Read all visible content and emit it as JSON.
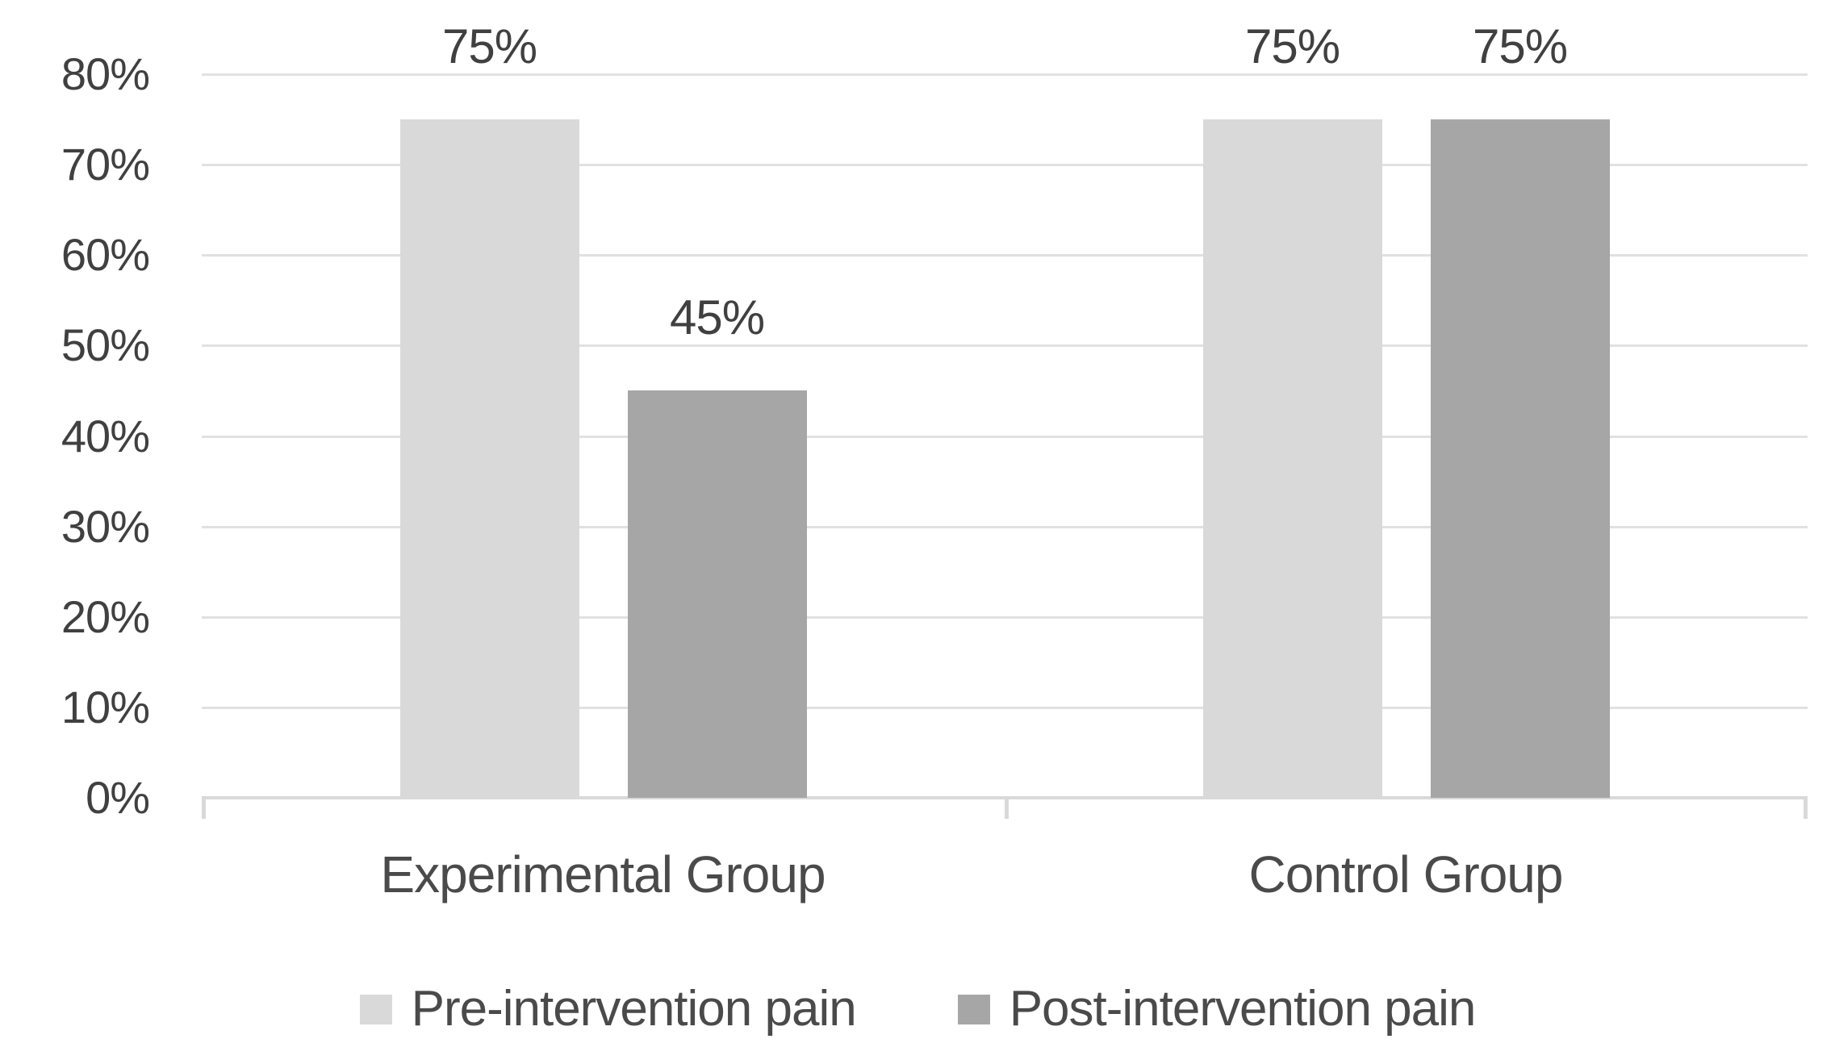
{
  "chart_data": {
    "type": "bar",
    "categories": [
      "Experimental Group",
      "Control Group"
    ],
    "series": [
      {
        "name": "Pre-intervention pain",
        "color": "#d9d9d9",
        "values": [
          75,
          75
        ],
        "labels": [
          "75%",
          "75%"
        ]
      },
      {
        "name": "Post-intervention pain",
        "color": "#a6a6a6",
        "values": [
          45,
          75
        ],
        "labels": [
          "45%",
          "75%"
        ]
      }
    ],
    "title": "",
    "xlabel": "",
    "ylabel": "",
    "ylim": [
      0,
      80
    ],
    "ytick_step": 10,
    "ytick_labels": [
      "0%",
      "10%",
      "20%",
      "30%",
      "40%",
      "50%",
      "60%",
      "70%",
      "80%"
    ],
    "grid": true,
    "legend_position": "bottom",
    "colors": {
      "text": "#404040",
      "gridline": "#e1e1e1",
      "axis_line": "#d9d9d9",
      "background": "#ffffff"
    }
  }
}
